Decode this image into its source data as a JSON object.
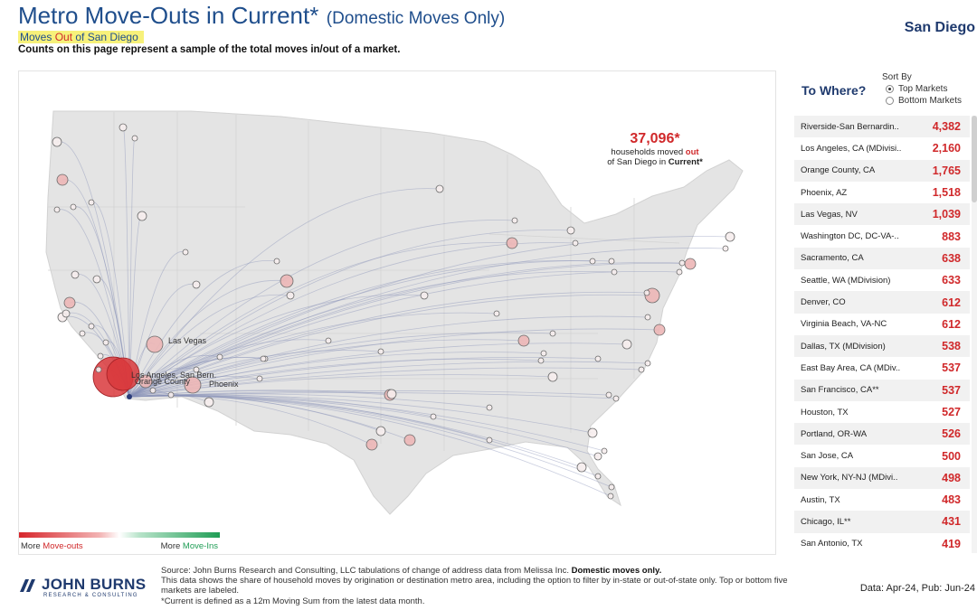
{
  "header": {
    "title": "Metro Move-Outs in Current*",
    "title_suffix": "(Domestic Moves Only)",
    "market": "San Diego",
    "subtitle_pre": "Moves ",
    "subtitle_out": "Out",
    "subtitle_post": " of San Diego",
    "note": "Counts on this page represent a sample of the total moves in/out of a market."
  },
  "callout": {
    "value": "37,096*",
    "line1": "households moved",
    "line1_out": "out",
    "line2_pre": "of San Diego in",
    "line2_current": "Current*"
  },
  "map_labels": {
    "las_vegas": "Las Vegas",
    "la_overlap": "Los Angeles, San Bern.",
    "orange": "Orange County",
    "phoenix": "Phoenix"
  },
  "legend": {
    "left_pre": "More ",
    "left_key": "Move-outs",
    "right_pre": "More ",
    "right_key": "Move-Ins",
    "color_out": "#d7262b",
    "color_in": "#1f9d55"
  },
  "panel": {
    "title": "To Where?",
    "sort_label": "Sort By",
    "sort_options": [
      "Top Markets",
      "Bottom Markets"
    ],
    "sort_selected": "Top Markets"
  },
  "chart_data": {
    "type": "table",
    "title": "Metro Move-Outs in Current* (Domestic Moves Only)",
    "origin": "San Diego",
    "total_moves_out": "37,096*",
    "destinations": [
      {
        "name": "Riverside-San Bernardin..",
        "value": 4382,
        "label": "4,382"
      },
      {
        "name": "Los Angeles, CA (MDivisi..",
        "value": 2160,
        "label": "2,160"
      },
      {
        "name": "Orange County, CA",
        "value": 1765,
        "label": "1,765"
      },
      {
        "name": "Phoenix, AZ",
        "value": 1518,
        "label": "1,518"
      },
      {
        "name": "Las Vegas, NV",
        "value": 1039,
        "label": "1,039"
      },
      {
        "name": "Washington DC, DC-VA-..",
        "value": 883,
        "label": "883"
      },
      {
        "name": "Sacramento, CA",
        "value": 638,
        "label": "638"
      },
      {
        "name": "Seattle, WA (MDivision)",
        "value": 633,
        "label": "633"
      },
      {
        "name": "Denver, CO",
        "value": 612,
        "label": "612"
      },
      {
        "name": "Virginia Beach, VA-NC",
        "value": 612,
        "label": "612"
      },
      {
        "name": "Dallas, TX (MDivision)",
        "value": 538,
        "label": "538"
      },
      {
        "name": "East Bay Area, CA (MDiv..",
        "value": 537,
        "label": "537"
      },
      {
        "name": "San Francisco, CA**",
        "value": 537,
        "label": "537"
      },
      {
        "name": "Houston, TX",
        "value": 527,
        "label": "527"
      },
      {
        "name": "Portland, OR-WA",
        "value": 526,
        "label": "526"
      },
      {
        "name": "San Jose, CA",
        "value": 500,
        "label": "500"
      },
      {
        "name": "New York, NY-NJ (MDivi..",
        "value": 498,
        "label": "498"
      },
      {
        "name": "Austin, TX",
        "value": 483,
        "label": "483"
      },
      {
        "name": "Chicago, IL**",
        "value": 431,
        "label": "431"
      },
      {
        "name": "San Antonio, TX",
        "value": 419,
        "label": "419"
      }
    ]
  },
  "footer": {
    "logo_main": "JOHN BURNS",
    "logo_small": "RESEARCH & CONSULTING",
    "source_pre": "Source: John Burns Research and Consulting, LLC tabulations of change of address data from Melissa Inc. ",
    "source_bold": "Domestic moves only.",
    "source_line2": "This data shows the share of household moves by origination or destination metro area, including the option to filter by in-state or out-of-state only. Top or bottom five markets are labeled.",
    "source_line3": "*Current is defined as a 12m Moving Sum from the latest data month.",
    "data_date": "Data: Apr-24, Pub: Jun-24"
  }
}
